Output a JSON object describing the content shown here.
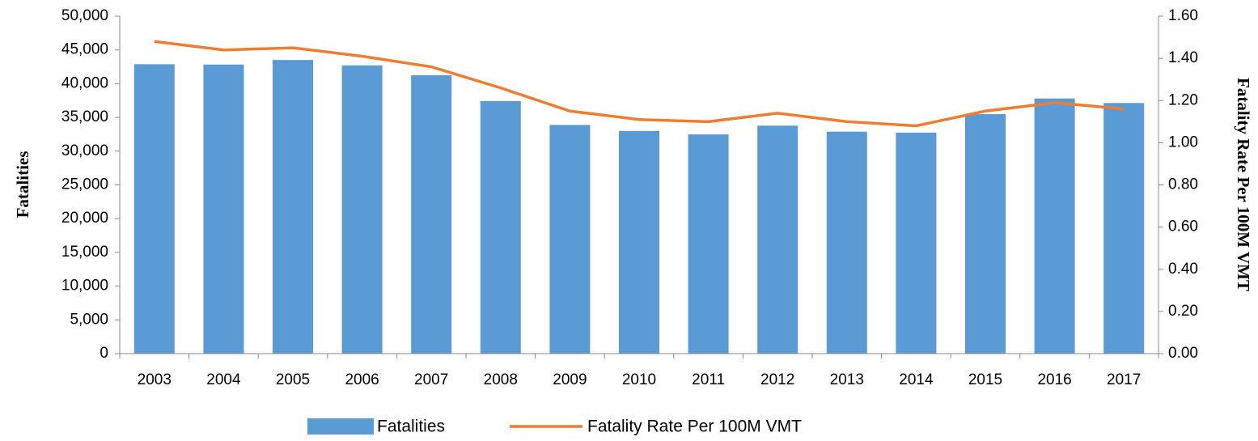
{
  "chart_data": {
    "type": "bar-line",
    "y_label": "Fatalities",
    "y2_label": "Fatality Rate Per 100M VMT",
    "categories": [
      "2003",
      "2004",
      "2005",
      "2006",
      "2007",
      "2008",
      "2009",
      "2010",
      "2011",
      "2012",
      "2013",
      "2014",
      "2015",
      "2016",
      "2017"
    ],
    "series": [
      {
        "name": "Fatalities",
        "type": "bar",
        "color": "#5b9bd5",
        "values": [
          42884,
          42836,
          43510,
          42708,
          41259,
          37423,
          33883,
          32999,
          32479,
          33782,
          32893,
          32744,
          35484,
          37806,
          37133
        ]
      },
      {
        "name": "Fatality Rate Per 100M VMT",
        "type": "line",
        "axis": "y2",
        "color": "#ed7d31",
        "values": [
          1.48,
          1.44,
          1.45,
          1.41,
          1.36,
          1.26,
          1.15,
          1.11,
          1.1,
          1.14,
          1.1,
          1.08,
          1.15,
          1.19,
          1.16
        ]
      }
    ],
    "ylim": [
      0,
      50000
    ],
    "yticks": [
      0,
      {
        "value": 5000,
        "label": "5,000"
      },
      {
        "value": 10000,
        "label": "10,000"
      },
      {
        "value": 15000,
        "label": "15,000"
      },
      {
        "value": 20000,
        "label": "20,000"
      },
      {
        "value": 25000,
        "label": "25,000"
      },
      {
        "value": 30000,
        "label": "30,000"
      },
      {
        "value": 35000,
        "label": "35,000"
      },
      {
        "value": 40000,
        "label": "40,000"
      },
      {
        "value": 45000,
        "label": "45,000"
      },
      {
        "value": 50000,
        "label": "50,000"
      }
    ],
    "y2lim": [
      0,
      1.6
    ],
    "y2ticks": [
      {
        "value": 0,
        "label": "0.00"
      },
      {
        "value": 0.2,
        "label": "0.20"
      },
      {
        "value": 0.4,
        "label": "0.40"
      },
      {
        "value": 0.6,
        "label": "0.60"
      },
      {
        "value": 0.8,
        "label": "0.80"
      },
      {
        "value": 1.0,
        "label": "1.00"
      },
      {
        "value": 1.2,
        "label": "1.20"
      },
      {
        "value": 1.4,
        "label": "1.40"
      },
      {
        "value": 1.6,
        "label": "1.60"
      }
    ],
    "legend": "bottom",
    "grid": false
  }
}
